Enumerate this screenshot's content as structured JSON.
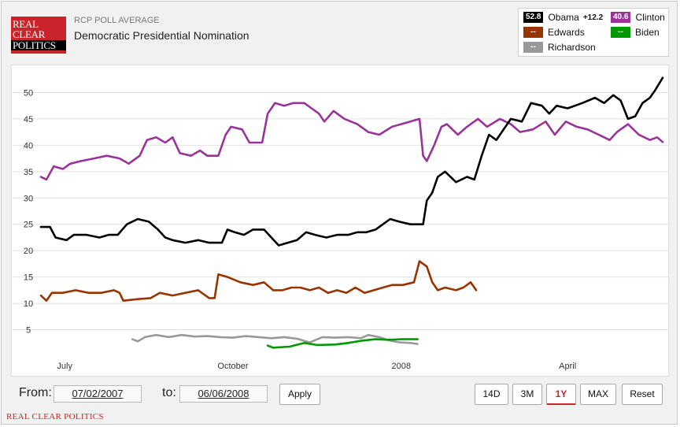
{
  "header": {
    "logo_lines": [
      "REAL",
      "CLEAR",
      "POLITICS"
    ],
    "subtitle": "RCP POLL AVERAGE",
    "title": "Democratic Presidential Nomination"
  },
  "legend": [
    {
      "name": "Obama",
      "value": "52.8",
      "spread": "+12.2",
      "color": "#000000"
    },
    {
      "name": "Clinton",
      "value": "40.6",
      "color": "#993399"
    },
    {
      "name": "Edwards",
      "value": "--",
      "color": "#993300"
    },
    {
      "name": "Biden",
      "value": "--",
      "color": "#009900"
    },
    {
      "name": "Richardson",
      "value": "--",
      "color": "#999999"
    }
  ],
  "controls": {
    "from_label": "From:",
    "from_value": "07/02/2007",
    "to_label": "to:",
    "to_value": "06/06/2008",
    "apply_label": "Apply",
    "range_buttons": [
      "14D",
      "3M",
      "1Y",
      "MAX"
    ],
    "active_range": "1Y",
    "reset_label": "Reset"
  },
  "footer": {
    "brand": "REAL CLEAR POLITICS"
  },
  "chart_data": {
    "type": "line",
    "title": "Democratic Presidential Nomination",
    "xlim": [
      "2007-07-02",
      "2008-06-06"
    ],
    "ylim": [
      0,
      55
    ],
    "yticks": [
      5,
      10,
      15,
      20,
      25,
      30,
      35,
      40,
      45,
      50
    ],
    "xticks": [
      {
        "label": "July",
        "date": "2007-07-15"
      },
      {
        "label": "October",
        "date": "2007-10-15"
      },
      {
        "label": "2008",
        "date": "2008-01-15"
      },
      {
        "label": "April",
        "date": "2008-04-15"
      }
    ],
    "grid": true,
    "series": [
      {
        "name": "Clinton",
        "color": "#993399",
        "points": [
          [
            "2007-07-02",
            34
          ],
          [
            "2007-07-05",
            33.5
          ],
          [
            "2007-07-09",
            36
          ],
          [
            "2007-07-14",
            35.5
          ],
          [
            "2007-07-18",
            36.5
          ],
          [
            "2007-07-24",
            37
          ],
          [
            "2007-07-31",
            37.5
          ],
          [
            "2007-08-07",
            38
          ],
          [
            "2007-08-14",
            37.5
          ],
          [
            "2007-08-19",
            36.5
          ],
          [
            "2007-08-25",
            38
          ],
          [
            "2007-08-29",
            41
          ],
          [
            "2007-09-03",
            41.5
          ],
          [
            "2007-09-08",
            40.5
          ],
          [
            "2007-09-12",
            41.5
          ],
          [
            "2007-09-16",
            38.5
          ],
          [
            "2007-09-22",
            38
          ],
          [
            "2007-09-27",
            39
          ],
          [
            "2007-10-01",
            38
          ],
          [
            "2007-10-07",
            38
          ],
          [
            "2007-10-11",
            42
          ],
          [
            "2007-10-14",
            43.5
          ],
          [
            "2007-10-20",
            43
          ],
          [
            "2007-10-24",
            40.5
          ],
          [
            "2007-10-31",
            40.5
          ],
          [
            "2007-11-03",
            46
          ],
          [
            "2007-11-07",
            48
          ],
          [
            "2007-11-12",
            47.5
          ],
          [
            "2007-11-17",
            48
          ],
          [
            "2007-11-23",
            48
          ],
          [
            "2007-11-27",
            47
          ],
          [
            "2007-12-01",
            46
          ],
          [
            "2007-12-04",
            44.5
          ],
          [
            "2007-12-09",
            46.5
          ],
          [
            "2007-12-15",
            45
          ],
          [
            "2007-12-22",
            44
          ],
          [
            "2007-12-28",
            42.5
          ],
          [
            "2008-01-03",
            42
          ],
          [
            "2008-01-10",
            43.5
          ],
          [
            "2008-01-15",
            44
          ],
          [
            "2008-01-20",
            44.5
          ],
          [
            "2008-01-25",
            45
          ],
          [
            "2008-01-27",
            38
          ],
          [
            "2008-01-29",
            37
          ],
          [
            "2008-02-02",
            40
          ],
          [
            "2008-02-06",
            43.5
          ],
          [
            "2008-02-09",
            44
          ],
          [
            "2008-02-15",
            42
          ],
          [
            "2008-02-20",
            43.5
          ],
          [
            "2008-02-26",
            45
          ],
          [
            "2008-03-02",
            43.5
          ],
          [
            "2008-03-09",
            45
          ],
          [
            "2008-03-15",
            44
          ],
          [
            "2008-03-20",
            42.5
          ],
          [
            "2008-03-27",
            43
          ],
          [
            "2008-04-03",
            44.5
          ],
          [
            "2008-04-08",
            42
          ],
          [
            "2008-04-14",
            44.5
          ],
          [
            "2008-04-20",
            43.5
          ],
          [
            "2008-04-26",
            43
          ],
          [
            "2008-05-02",
            42
          ],
          [
            "2008-05-08",
            41
          ],
          [
            "2008-05-12",
            42.5
          ],
          [
            "2008-05-18",
            44
          ],
          [
            "2008-05-24",
            42
          ],
          [
            "2008-05-30",
            41
          ],
          [
            "2008-06-03",
            41.5
          ],
          [
            "2008-06-06",
            40.6
          ]
        ]
      },
      {
        "name": "Obama",
        "color": "#000000",
        "points": [
          [
            "2007-07-02",
            24.5
          ],
          [
            "2007-07-07",
            24.5
          ],
          [
            "2007-07-10",
            22.5
          ],
          [
            "2007-07-16",
            22
          ],
          [
            "2007-07-20",
            23
          ],
          [
            "2007-07-27",
            23
          ],
          [
            "2007-08-03",
            22.5
          ],
          [
            "2007-08-08",
            23
          ],
          [
            "2007-08-13",
            23
          ],
          [
            "2007-08-18",
            25
          ],
          [
            "2007-08-24",
            26
          ],
          [
            "2007-08-30",
            25.5
          ],
          [
            "2007-09-04",
            24
          ],
          [
            "2007-09-08",
            22.5
          ],
          [
            "2007-09-12",
            22
          ],
          [
            "2007-09-19",
            21.5
          ],
          [
            "2007-09-26",
            22
          ],
          [
            "2007-10-02",
            21.5
          ],
          [
            "2007-10-09",
            21.5
          ],
          [
            "2007-10-12",
            24
          ],
          [
            "2007-10-16",
            23.5
          ],
          [
            "2007-10-21",
            23
          ],
          [
            "2007-10-26",
            24
          ],
          [
            "2007-11-01",
            24
          ],
          [
            "2007-11-05",
            22.5
          ],
          [
            "2007-11-09",
            21
          ],
          [
            "2007-11-14",
            21.5
          ],
          [
            "2007-11-19",
            22
          ],
          [
            "2007-11-24",
            23.5
          ],
          [
            "2007-11-29",
            23
          ],
          [
            "2007-12-05",
            22.5
          ],
          [
            "2007-12-11",
            23
          ],
          [
            "2007-12-17",
            23
          ],
          [
            "2007-12-22",
            23.5
          ],
          [
            "2007-12-27",
            23.5
          ],
          [
            "2008-01-01",
            24
          ],
          [
            "2008-01-05",
            25
          ],
          [
            "2008-01-09",
            26
          ],
          [
            "2008-01-14",
            25.5
          ],
          [
            "2008-01-20",
            25
          ],
          [
            "2008-01-27",
            25
          ],
          [
            "2008-01-29",
            29.5
          ],
          [
            "2008-02-01",
            31
          ],
          [
            "2008-02-04",
            34
          ],
          [
            "2008-02-08",
            35
          ],
          [
            "2008-02-14",
            33
          ],
          [
            "2008-02-20",
            34
          ],
          [
            "2008-02-24",
            33.5
          ],
          [
            "2008-02-28",
            38
          ],
          [
            "2008-03-03",
            42
          ],
          [
            "2008-03-07",
            41
          ],
          [
            "2008-03-11",
            43
          ],
          [
            "2008-03-15",
            45
          ],
          [
            "2008-03-21",
            44.5
          ],
          [
            "2008-03-26",
            48
          ],
          [
            "2008-04-01",
            47.5
          ],
          [
            "2008-04-05",
            46
          ],
          [
            "2008-04-09",
            47.5
          ],
          [
            "2008-04-15",
            47
          ],
          [
            "2008-04-19",
            47.5
          ],
          [
            "2008-04-23",
            48
          ],
          [
            "2008-04-30",
            49
          ],
          [
            "2008-05-05",
            48
          ],
          [
            "2008-05-10",
            49.5
          ],
          [
            "2008-05-14",
            48.5
          ],
          [
            "2008-05-18",
            45
          ],
          [
            "2008-05-22",
            45.5
          ],
          [
            "2008-05-26",
            48
          ],
          [
            "2008-05-30",
            49
          ],
          [
            "2008-06-02",
            50.5
          ],
          [
            "2008-06-06",
            52.8
          ]
        ]
      },
      {
        "name": "Edwards",
        "color": "#993300",
        "points": [
          [
            "2007-07-02",
            11.5
          ],
          [
            "2007-07-05",
            10.5
          ],
          [
            "2007-07-08",
            12
          ],
          [
            "2007-07-14",
            12
          ],
          [
            "2007-07-21",
            12.5
          ],
          [
            "2007-07-28",
            12
          ],
          [
            "2007-08-04",
            12
          ],
          [
            "2007-08-11",
            12.5
          ],
          [
            "2007-08-14",
            12
          ],
          [
            "2007-08-16",
            10.5
          ],
          [
            "2007-08-24",
            10.8
          ],
          [
            "2007-08-31",
            11
          ],
          [
            "2007-09-05",
            12
          ],
          [
            "2007-09-12",
            11.5
          ],
          [
            "2007-09-19",
            12
          ],
          [
            "2007-09-26",
            12.5
          ],
          [
            "2007-10-02",
            11
          ],
          [
            "2007-10-05",
            11
          ],
          [
            "2007-10-07",
            15.5
          ],
          [
            "2007-10-12",
            15
          ],
          [
            "2007-10-19",
            14
          ],
          [
            "2007-10-26",
            13.5
          ],
          [
            "2007-11-01",
            14
          ],
          [
            "2007-11-06",
            12.5
          ],
          [
            "2007-11-11",
            12.5
          ],
          [
            "2007-11-16",
            13
          ],
          [
            "2007-11-21",
            13
          ],
          [
            "2007-11-26",
            12.5
          ],
          [
            "2007-12-01",
            13
          ],
          [
            "2007-12-06",
            12
          ],
          [
            "2007-12-11",
            12.5
          ],
          [
            "2007-12-16",
            12
          ],
          [
            "2007-12-21",
            13
          ],
          [
            "2007-12-26",
            12
          ],
          [
            "2007-12-31",
            12.5
          ],
          [
            "2008-01-05",
            13
          ],
          [
            "2008-01-10",
            13.5
          ],
          [
            "2008-01-16",
            13.5
          ],
          [
            "2008-01-22",
            14
          ],
          [
            "2008-01-25",
            18
          ],
          [
            "2008-01-29",
            17
          ],
          [
            "2008-02-01",
            14
          ],
          [
            "2008-02-04",
            12.5
          ],
          [
            "2008-02-08",
            13
          ],
          [
            "2008-02-14",
            12.5
          ],
          [
            "2008-02-18",
            13
          ],
          [
            "2008-02-22",
            14
          ],
          [
            "2008-02-25",
            12.5
          ]
        ]
      },
      {
        "name": "Richardson",
        "color": "#999999",
        "points": [
          [
            "2007-08-21",
            3.2
          ],
          [
            "2007-08-24",
            2.8
          ],
          [
            "2007-08-28",
            3.6
          ],
          [
            "2007-09-03",
            4.0
          ],
          [
            "2007-09-10",
            3.6
          ],
          [
            "2007-09-17",
            4.0
          ],
          [
            "2007-09-24",
            3.7
          ],
          [
            "2007-10-01",
            3.8
          ],
          [
            "2007-10-08",
            3.6
          ],
          [
            "2007-10-15",
            3.5
          ],
          [
            "2007-10-22",
            3.8
          ],
          [
            "2007-10-29",
            3.6
          ],
          [
            "2007-11-05",
            3.4
          ],
          [
            "2007-11-12",
            3.6
          ],
          [
            "2007-11-19",
            3.3
          ],
          [
            "2007-11-26",
            2.6
          ],
          [
            "2007-12-03",
            3.6
          ],
          [
            "2007-12-10",
            3.5
          ],
          [
            "2007-12-17",
            3.6
          ],
          [
            "2007-12-24",
            3.4
          ],
          [
            "2007-12-28",
            4.0
          ],
          [
            "2008-01-03",
            3.6
          ],
          [
            "2008-01-08",
            3.0
          ],
          [
            "2008-01-14",
            2.6
          ],
          [
            "2008-01-20",
            2.5
          ],
          [
            "2008-01-24",
            2.3
          ]
        ]
      },
      {
        "name": "Biden",
        "color": "#009900",
        "points": [
          [
            "2007-11-03",
            2.0
          ],
          [
            "2007-11-06",
            1.6
          ],
          [
            "2007-11-15",
            1.8
          ],
          [
            "2007-11-23",
            2.5
          ],
          [
            "2007-11-30",
            2.1
          ],
          [
            "2007-12-10",
            2.2
          ],
          [
            "2007-12-17",
            2.5
          ],
          [
            "2007-12-24",
            2.9
          ],
          [
            "2008-01-01",
            3.2
          ],
          [
            "2008-01-08",
            3.1
          ],
          [
            "2008-01-15",
            3.2
          ],
          [
            "2008-01-24",
            3.2
          ]
        ]
      }
    ]
  }
}
